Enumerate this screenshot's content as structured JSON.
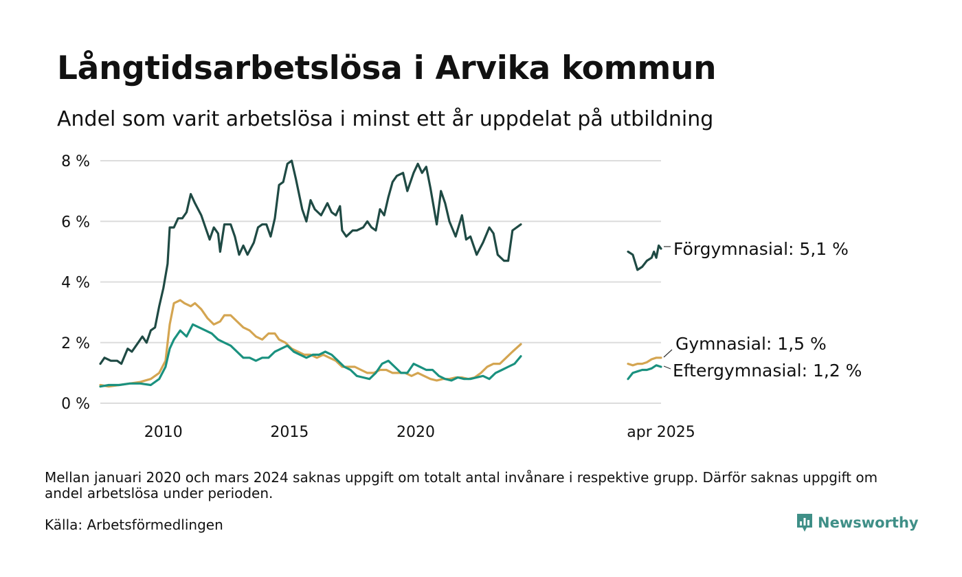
{
  "chart_data": {
    "type": "line",
    "title": "Långtidsarbetslösa i Arvika kommun",
    "subtitle": "Andel som varit arbetslösa i minst ett år uppdelat på utbildning",
    "xlabel": "",
    "ylabel": "",
    "ylim": [
      0,
      8
    ],
    "yticks": [
      0,
      2,
      4,
      6,
      8
    ],
    "ytick_labels": [
      "0 %",
      "2 %",
      "4 %",
      "6 %",
      "8 %"
    ],
    "xtick_labels": [
      "2010",
      "2015",
      "2020",
      "apr 2025"
    ],
    "grid": "horizontal",
    "legend": "direct labels at line ends (right)",
    "gap": "2021-01 to 2024-03",
    "series": [
      {
        "name": "Förgymnasial",
        "end_label": "Förgymnasial: 5,1 %",
        "color": "#1f4a44",
        "points": [
          [
            "2008-01",
            1.3
          ],
          [
            "2008-03",
            1.5
          ],
          [
            "2008-06",
            1.4
          ],
          [
            "2008-09",
            1.4
          ],
          [
            "2008-11",
            1.3
          ],
          [
            "2009-02",
            1.8
          ],
          [
            "2009-04",
            1.7
          ],
          [
            "2009-07",
            2.0
          ],
          [
            "2009-09",
            2.2
          ],
          [
            "2009-11",
            2.0
          ],
          [
            "2010-01",
            2.4
          ],
          [
            "2010-03",
            2.5
          ],
          [
            "2010-05",
            3.2
          ],
          [
            "2010-07",
            3.8
          ],
          [
            "2010-09",
            4.6
          ],
          [
            "2010-10",
            5.8
          ],
          [
            "2010-12",
            5.8
          ],
          [
            "2011-02",
            6.1
          ],
          [
            "2011-04",
            6.1
          ],
          [
            "2011-06",
            6.3
          ],
          [
            "2011-08",
            6.9
          ],
          [
            "2011-10",
            6.6
          ],
          [
            "2012-01",
            6.2
          ],
          [
            "2012-03",
            5.8
          ],
          [
            "2012-05",
            5.4
          ],
          [
            "2012-07",
            5.8
          ],
          [
            "2012-09",
            5.6
          ],
          [
            "2012-10",
            5.0
          ],
          [
            "2012-12",
            5.9
          ],
          [
            "2013-03",
            5.9
          ],
          [
            "2013-05",
            5.5
          ],
          [
            "2013-07",
            4.9
          ],
          [
            "2013-09",
            5.2
          ],
          [
            "2013-11",
            4.9
          ],
          [
            "2014-02",
            5.3
          ],
          [
            "2014-04",
            5.8
          ],
          [
            "2014-06",
            5.9
          ],
          [
            "2014-08",
            5.9
          ],
          [
            "2014-10",
            5.5
          ],
          [
            "2014-12",
            6.1
          ],
          [
            "2015-02",
            7.2
          ],
          [
            "2015-04",
            7.3
          ],
          [
            "2015-06",
            7.9
          ],
          [
            "2015-08",
            8.0
          ],
          [
            "2015-10",
            7.4
          ],
          [
            "2016-01",
            6.4
          ],
          [
            "2016-03",
            6.0
          ],
          [
            "2016-05",
            6.7
          ],
          [
            "2016-07",
            6.4
          ],
          [
            "2016-10",
            6.2
          ],
          [
            "2017-01",
            6.6
          ],
          [
            "2017-03",
            6.3
          ],
          [
            "2017-05",
            6.2
          ],
          [
            "2017-07",
            6.5
          ],
          [
            "2017-08",
            5.7
          ],
          [
            "2017-10",
            5.5
          ],
          [
            "2018-01",
            5.7
          ],
          [
            "2018-03",
            5.7
          ],
          [
            "2018-06",
            5.8
          ],
          [
            "2018-08",
            6.0
          ],
          [
            "2018-10",
            5.8
          ],
          [
            "2018-12",
            5.7
          ],
          [
            "2019-02",
            6.4
          ],
          [
            "2019-04",
            6.2
          ],
          [
            "2019-06",
            6.8
          ],
          [
            "2019-08",
            7.3
          ],
          [
            "2019-10",
            7.5
          ],
          [
            "2020-01",
            7.6
          ],
          [
            "2020-03",
            7.0
          ],
          [
            "2020-06",
            7.6
          ],
          [
            "2020-08",
            7.9
          ],
          [
            "2020-10",
            7.6
          ],
          [
            "2020-12",
            7.8
          ],
          [
            "2021-02",
            7.1
          ],
          [
            "2021-05",
            5.9
          ],
          [
            "2021-07",
            7.0
          ],
          [
            "2021-09",
            6.6
          ],
          [
            "2021-11",
            6.0
          ],
          [
            "2022-02",
            5.5
          ],
          [
            "2022-05",
            6.2
          ],
          [
            "2022-07",
            5.4
          ],
          [
            "2022-09",
            5.5
          ],
          [
            "2022-12",
            4.9
          ],
          [
            "2023-03",
            5.3
          ],
          [
            "2023-06",
            5.8
          ],
          [
            "2023-08",
            5.6
          ],
          [
            "2023-10",
            4.9
          ],
          [
            "2024-01",
            4.7
          ],
          [
            "2024-03",
            4.7
          ],
          [
            "2024-05",
            5.7
          ],
          [
            "2024-09",
            5.9
          ]
        ]
      },
      {
        "name": "Gymnasial",
        "end_label": "Gymnasial: 1,5 %",
        "color": "#d4a551",
        "points": [
          [
            "2008-01",
            0.6
          ],
          [
            "2008-05",
            0.55
          ],
          [
            "2008-10",
            0.6
          ],
          [
            "2009-03",
            0.65
          ],
          [
            "2009-08",
            0.7
          ],
          [
            "2010-01",
            0.8
          ],
          [
            "2010-05",
            1.0
          ],
          [
            "2010-08",
            1.4
          ],
          [
            "2010-10",
            2.6
          ],
          [
            "2010-12",
            3.3
          ],
          [
            "2011-03",
            3.4
          ],
          [
            "2011-05",
            3.3
          ],
          [
            "2011-08",
            3.2
          ],
          [
            "2011-10",
            3.3
          ],
          [
            "2012-01",
            3.1
          ],
          [
            "2012-04",
            2.8
          ],
          [
            "2012-07",
            2.6
          ],
          [
            "2012-10",
            2.7
          ],
          [
            "2012-12",
            2.9
          ],
          [
            "2013-03",
            2.9
          ],
          [
            "2013-06",
            2.7
          ],
          [
            "2013-09",
            2.5
          ],
          [
            "2013-12",
            2.4
          ],
          [
            "2014-03",
            2.2
          ],
          [
            "2014-06",
            2.1
          ],
          [
            "2014-09",
            2.3
          ],
          [
            "2014-12",
            2.3
          ],
          [
            "2015-02",
            2.1
          ],
          [
            "2015-05",
            2.0
          ],
          [
            "2015-08",
            1.8
          ],
          [
            "2015-11",
            1.7
          ],
          [
            "2016-02",
            1.6
          ],
          [
            "2016-05",
            1.6
          ],
          [
            "2016-08",
            1.5
          ],
          [
            "2016-11",
            1.6
          ],
          [
            "2017-02",
            1.5
          ],
          [
            "2017-05",
            1.4
          ],
          [
            "2017-08",
            1.2
          ],
          [
            "2017-11",
            1.2
          ],
          [
            "2018-02",
            1.2
          ],
          [
            "2018-05",
            1.1
          ],
          [
            "2018-08",
            1.0
          ],
          [
            "2018-11",
            1.0
          ],
          [
            "2019-02",
            1.1
          ],
          [
            "2019-05",
            1.1
          ],
          [
            "2019-08",
            1.0
          ],
          [
            "2019-11",
            1.0
          ],
          [
            "2020-02",
            1.0
          ],
          [
            "2020-05",
            0.9
          ],
          [
            "2020-08",
            1.0
          ],
          [
            "2020-11",
            0.9
          ],
          [
            "2021-02",
            0.8
          ],
          [
            "2021-05",
            0.75
          ],
          [
            "2021-08",
            0.8
          ],
          [
            "2021-11",
            0.8
          ],
          [
            "2022-02",
            0.85
          ],
          [
            "2022-05",
            0.85
          ],
          [
            "2022-08",
            0.8
          ],
          [
            "2022-11",
            0.85
          ],
          [
            "2023-02",
            1.0
          ],
          [
            "2023-05",
            1.2
          ],
          [
            "2023-08",
            1.3
          ],
          [
            "2023-11",
            1.3
          ],
          [
            "2024-02",
            1.5
          ],
          [
            "2024-05",
            1.7
          ],
          [
            "2024-09",
            1.95
          ]
        ]
      },
      {
        "name": "Eftergymnasial",
        "end_label": "Eftergymnasial: 1,2 %",
        "color": "#1a917f",
        "points": [
          [
            "2008-01",
            0.55
          ],
          [
            "2008-05",
            0.6
          ],
          [
            "2008-10",
            0.6
          ],
          [
            "2009-03",
            0.65
          ],
          [
            "2009-08",
            0.65
          ],
          [
            "2010-01",
            0.6
          ],
          [
            "2010-05",
            0.8
          ],
          [
            "2010-08",
            1.2
          ],
          [
            "2010-10",
            1.8
          ],
          [
            "2010-12",
            2.1
          ],
          [
            "2011-03",
            2.4
          ],
          [
            "2011-06",
            2.2
          ],
          [
            "2011-09",
            2.6
          ],
          [
            "2011-12",
            2.5
          ],
          [
            "2012-03",
            2.4
          ],
          [
            "2012-06",
            2.3
          ],
          [
            "2012-09",
            2.1
          ],
          [
            "2012-12",
            2.0
          ],
          [
            "2013-03",
            1.9
          ],
          [
            "2013-06",
            1.7
          ],
          [
            "2013-09",
            1.5
          ],
          [
            "2013-12",
            1.5
          ],
          [
            "2014-03",
            1.4
          ],
          [
            "2014-06",
            1.5
          ],
          [
            "2014-09",
            1.5
          ],
          [
            "2014-12",
            1.7
          ],
          [
            "2015-03",
            1.8
          ],
          [
            "2015-06",
            1.9
          ],
          [
            "2015-09",
            1.7
          ],
          [
            "2015-12",
            1.6
          ],
          [
            "2016-03",
            1.5
          ],
          [
            "2016-06",
            1.6
          ],
          [
            "2016-09",
            1.6
          ],
          [
            "2016-12",
            1.7
          ],
          [
            "2017-03",
            1.6
          ],
          [
            "2017-06",
            1.4
          ],
          [
            "2017-09",
            1.2
          ],
          [
            "2017-12",
            1.1
          ],
          [
            "2018-03",
            0.9
          ],
          [
            "2018-06",
            0.85
          ],
          [
            "2018-09",
            0.8
          ],
          [
            "2018-12",
            1.0
          ],
          [
            "2019-03",
            1.3
          ],
          [
            "2019-06",
            1.4
          ],
          [
            "2019-09",
            1.2
          ],
          [
            "2019-12",
            1.0
          ],
          [
            "2020-03",
            1.0
          ],
          [
            "2020-06",
            1.3
          ],
          [
            "2020-09",
            1.2
          ],
          [
            "2020-12",
            1.1
          ],
          [
            "2021-03",
            1.1
          ],
          [
            "2021-06",
            0.9
          ],
          [
            "2021-09",
            0.8
          ],
          [
            "2021-12",
            0.75
          ],
          [
            "2022-03",
            0.85
          ],
          [
            "2022-06",
            0.8
          ],
          [
            "2022-09",
            0.8
          ],
          [
            "2022-12",
            0.85
          ],
          [
            "2023-03",
            0.9
          ],
          [
            "2023-06",
            0.8
          ],
          [
            "2023-09",
            1.0
          ],
          [
            "2023-12",
            1.1
          ],
          [
            "2024-03",
            1.2
          ],
          [
            "2024-06",
            1.3
          ],
          [
            "2024-09",
            1.55
          ]
        ]
      }
    ],
    "recent_series": [
      {
        "name": "Förgymnasial",
        "points": [
          [
            "2024-03",
            5.0
          ],
          [
            "2024-05",
            4.9
          ],
          [
            "2024-07",
            4.4
          ],
          [
            "2024-09",
            4.5
          ],
          [
            "2024-11",
            4.7
          ],
          [
            "2025-01",
            4.8
          ],
          [
            "2025-02",
            5.0
          ],
          [
            "2025-03",
            4.8
          ],
          [
            "2025-04",
            5.2
          ],
          [
            "2025-05",
            5.1
          ]
        ]
      },
      {
        "name": "Gymnasial",
        "points": [
          [
            "2024-03",
            1.3
          ],
          [
            "2024-05",
            1.25
          ],
          [
            "2024-07",
            1.3
          ],
          [
            "2024-09",
            1.3
          ],
          [
            "2024-11",
            1.35
          ],
          [
            "2025-01",
            1.45
          ],
          [
            "2025-03",
            1.5
          ],
          [
            "2025-05",
            1.5
          ]
        ]
      },
      {
        "name": "Eftergymnasial",
        "points": [
          [
            "2024-03",
            0.8
          ],
          [
            "2024-05",
            1.0
          ],
          [
            "2024-07",
            1.05
          ],
          [
            "2024-09",
            1.1
          ],
          [
            "2024-11",
            1.1
          ],
          [
            "2025-01",
            1.15
          ],
          [
            "2025-03",
            1.25
          ],
          [
            "2025-05",
            1.2
          ]
        ]
      }
    ]
  },
  "footer": {
    "note": "Mellan januari 2020 och mars 2024 saknas uppgift om totalt antal invånare i respektive grupp. Därför saknas uppgift om andel arbetslösa under perioden.",
    "source": "Källa: Arbetsförmedlingen",
    "brand": "Newsworthy",
    "brand_color": "#3f8f87"
  }
}
